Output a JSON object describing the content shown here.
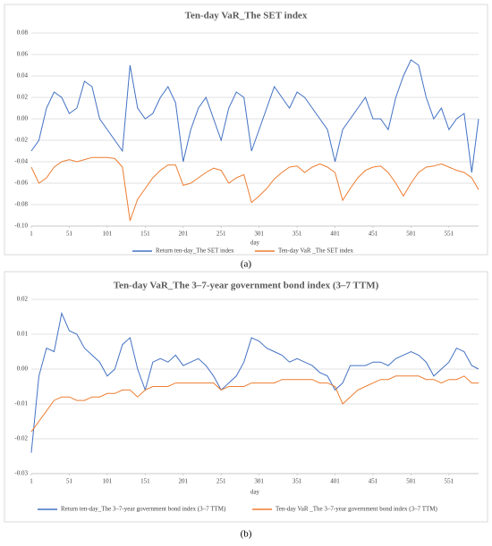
{
  "chart_data": [
    {
      "type": "line",
      "title": "Ten-day VaR_The SET index",
      "caption": "(a)",
      "x_label": "day",
      "x": [
        1,
        11,
        21,
        31,
        41,
        51,
        61,
        71,
        81,
        91,
        101,
        111,
        121,
        131,
        141,
        151,
        161,
        171,
        181,
        191,
        201,
        211,
        221,
        231,
        241,
        251,
        261,
        271,
        281,
        291,
        301,
        311,
        321,
        331,
        341,
        351,
        361,
        371,
        381,
        391,
        401,
        411,
        421,
        431,
        441,
        451,
        461,
        471,
        481,
        491,
        501,
        511,
        521,
        531,
        541,
        551,
        561,
        571,
        581,
        590
      ],
      "xlim": [
        1,
        590
      ],
      "xticks": [
        1,
        51,
        101,
        151,
        201,
        251,
        301,
        351,
        401,
        451,
        501,
        551
      ],
      "ylim": [
        -0.1,
        0.08
      ],
      "yticks": [
        0.08,
        0.06,
        0.04,
        0.02,
        {
          "value": 0,
          "label": "0.00"
        },
        -0.02,
        -0.04,
        -0.06,
        -0.08,
        {
          "value": -0.1,
          "label": "-0.10"
        }
      ],
      "grid": true,
      "legend": "bottom",
      "series": [
        {
          "name": "Return ten-day_The SET index",
          "color": "#4472c4",
          "values": [
            -0.03,
            -0.02,
            0.01,
            0.025,
            0.02,
            0.005,
            0.01,
            0.035,
            0.03,
            0.0,
            -0.01,
            -0.02,
            -0.03,
            0.05,
            0.01,
            0.0,
            0.005,
            0.02,
            0.03,
            0.015,
            -0.04,
            -0.01,
            0.01,
            0.02,
            0.0,
            -0.02,
            0.01,
            0.025,
            0.02,
            -0.03,
            -0.01,
            0.01,
            0.03,
            0.02,
            0.01,
            0.025,
            0.02,
            0.01,
            0.0,
            -0.01,
            -0.04,
            -0.01,
            0.0,
            0.01,
            0.02,
            0.0,
            0.0,
            -0.01,
            0.02,
            0.04,
            0.055,
            0.05,
            0.02,
            0.0,
            0.01,
            -0.01,
            0.0,
            0.005,
            -0.05,
            0.0
          ]
        },
        {
          "name": "Ten-day VaR _The SET index",
          "color": "#ed7d31",
          "values": [
            -0.045,
            -0.06,
            -0.055,
            -0.045,
            -0.04,
            -0.038,
            -0.04,
            -0.038,
            -0.036,
            -0.036,
            -0.036,
            -0.037,
            -0.045,
            -0.095,
            -0.075,
            -0.065,
            -0.055,
            -0.048,
            -0.043,
            -0.043,
            -0.062,
            -0.06,
            -0.055,
            -0.05,
            -0.046,
            -0.048,
            -0.06,
            -0.055,
            -0.052,
            -0.078,
            -0.072,
            -0.065,
            -0.056,
            -0.05,
            -0.045,
            -0.044,
            -0.05,
            -0.045,
            -0.042,
            -0.045,
            -0.05,
            -0.076,
            -0.065,
            -0.055,
            -0.048,
            -0.045,
            -0.044,
            -0.05,
            -0.06,
            -0.072,
            -0.06,
            -0.05,
            -0.045,
            -0.044,
            -0.042,
            -0.045,
            -0.048,
            -0.05,
            -0.055,
            -0.066
          ]
        }
      ]
    },
    {
      "type": "line",
      "title": "Ten-day VaR_The 3–7-year government bond index (3–7 TTM)",
      "caption": "(b)",
      "x_label": "day",
      "x": [
        1,
        11,
        21,
        31,
        41,
        51,
        61,
        71,
        81,
        91,
        101,
        111,
        121,
        131,
        141,
        151,
        161,
        171,
        181,
        191,
        201,
        211,
        221,
        231,
        241,
        251,
        261,
        271,
        281,
        291,
        301,
        311,
        321,
        331,
        341,
        351,
        361,
        371,
        381,
        391,
        401,
        411,
        421,
        431,
        441,
        451,
        461,
        471,
        481,
        491,
        501,
        511,
        521,
        531,
        541,
        551,
        561,
        571,
        581,
        590
      ],
      "xlim": [
        1,
        590
      ],
      "xticks": [
        1,
        51,
        101,
        151,
        201,
        251,
        301,
        351,
        401,
        451,
        501,
        551
      ],
      "ylim": [
        -0.03,
        0.02
      ],
      "yticks": [
        0.02,
        0.01,
        {
          "value": 0,
          "label": "0.00"
        },
        -0.01,
        -0.02,
        -0.03
      ],
      "grid": true,
      "legend": "bottom",
      "series": [
        {
          "name": "Return ten-day_The 3–7-year government bond index (3–7 TTM)",
          "color": "#4472c4",
          "values": [
            -0.024,
            -0.002,
            0.006,
            0.005,
            0.016,
            0.011,
            0.01,
            0.006,
            0.004,
            0.002,
            -0.002,
            0.0,
            0.007,
            0.009,
            0.0,
            -0.006,
            0.002,
            0.003,
            0.002,
            0.004,
            0.001,
            0.002,
            0.003,
            0.001,
            -0.002,
            -0.006,
            -0.004,
            -0.002,
            0.002,
            0.009,
            0.008,
            0.006,
            0.005,
            0.004,
            0.002,
            0.003,
            0.002,
            0.001,
            -0.001,
            -0.002,
            -0.006,
            -0.004,
            0.001,
            0.001,
            0.001,
            0.002,
            0.002,
            0.001,
            0.003,
            0.004,
            0.005,
            0.004,
            0.002,
            -0.002,
            0.0,
            0.002,
            0.006,
            0.005,
            0.001,
            0.0
          ]
        },
        {
          "name": "Ten-day VaR _The 3–7-year government bond index (3–7 TTM)",
          "color": "#ed7d31",
          "values": [
            -0.018,
            -0.015,
            -0.012,
            -0.009,
            -0.008,
            -0.008,
            -0.009,
            -0.009,
            -0.008,
            -0.008,
            -0.007,
            -0.007,
            -0.006,
            -0.006,
            -0.008,
            -0.006,
            -0.005,
            -0.005,
            -0.005,
            -0.004,
            -0.004,
            -0.004,
            -0.004,
            -0.004,
            -0.004,
            -0.006,
            -0.005,
            -0.005,
            -0.005,
            -0.004,
            -0.004,
            -0.004,
            -0.004,
            -0.003,
            -0.003,
            -0.003,
            -0.003,
            -0.003,
            -0.004,
            -0.004,
            -0.005,
            -0.01,
            -0.008,
            -0.006,
            -0.005,
            -0.004,
            -0.003,
            -0.003,
            -0.002,
            -0.002,
            -0.002,
            -0.002,
            -0.003,
            -0.003,
            -0.004,
            -0.003,
            -0.003,
            -0.002,
            -0.004,
            -0.004
          ]
        }
      ]
    }
  ]
}
